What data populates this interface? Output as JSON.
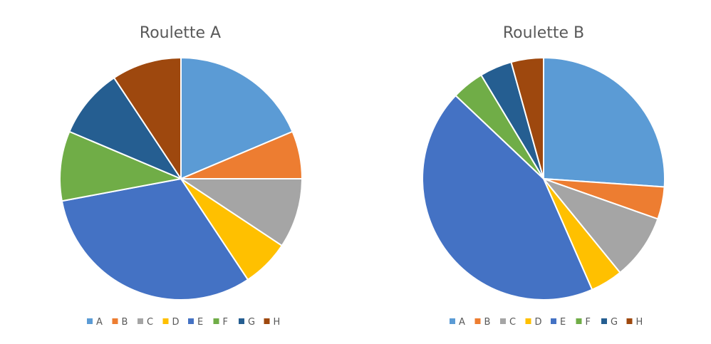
{
  "chart_data": [
    {
      "type": "pie",
      "title": "Roulette A",
      "categories": [
        "A",
        "B",
        "C",
        "D",
        "E",
        "F",
        "G",
        "H"
      ],
      "values": [
        19,
        6.5,
        9.5,
        6.5,
        32,
        9.5,
        9.5,
        9.5
      ],
      "start_angle": "12 o'clock, clockwise",
      "legend_position": "bottom"
    },
    {
      "type": "pie",
      "title": "Roulette B",
      "categories": [
        "A",
        "B",
        "C",
        "D",
        "E",
        "F",
        "G",
        "H"
      ],
      "values": [
        26,
        4.3,
        8.7,
        4.3,
        43.5,
        4.3,
        4.3,
        4.3
      ],
      "start_angle": "12 o'clock, clockwise",
      "legend_position": "bottom"
    }
  ],
  "colors": [
    "#5b9bd5",
    "#ed7d31",
    "#a5a5a5",
    "#ffc000",
    "#4472c4",
    "#70ad47",
    "#255e91",
    "#9e480e"
  ]
}
